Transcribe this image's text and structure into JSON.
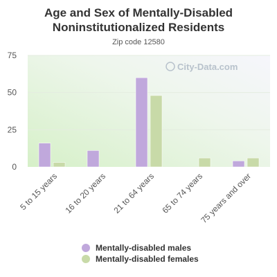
{
  "title_line1": "Age and Sex of Mentally-Disabled",
  "title_line2": "Noninstitutionalized Residents",
  "subtitle": "Zip code 12580",
  "watermark": "City-Data.com",
  "chart_data": {
    "type": "bar",
    "categories": [
      "5 to 15 years",
      "16 to 20 years",
      "21 to 64 years",
      "65 to 74 years",
      "75 years and over"
    ],
    "series": [
      {
        "name": "Mentally-disabled males",
        "values": [
          16,
          11,
          60,
          0,
          4
        ],
        "color": "#c0a8dc"
      },
      {
        "name": "Mentally-disabled females",
        "values": [
          3,
          0,
          48,
          6,
          6
        ],
        "color": "#c8daa8"
      }
    ],
    "yticks": [
      0,
      25,
      50,
      75
    ],
    "ylim": [
      0,
      75
    ],
    "legend_position": "bottom"
  }
}
